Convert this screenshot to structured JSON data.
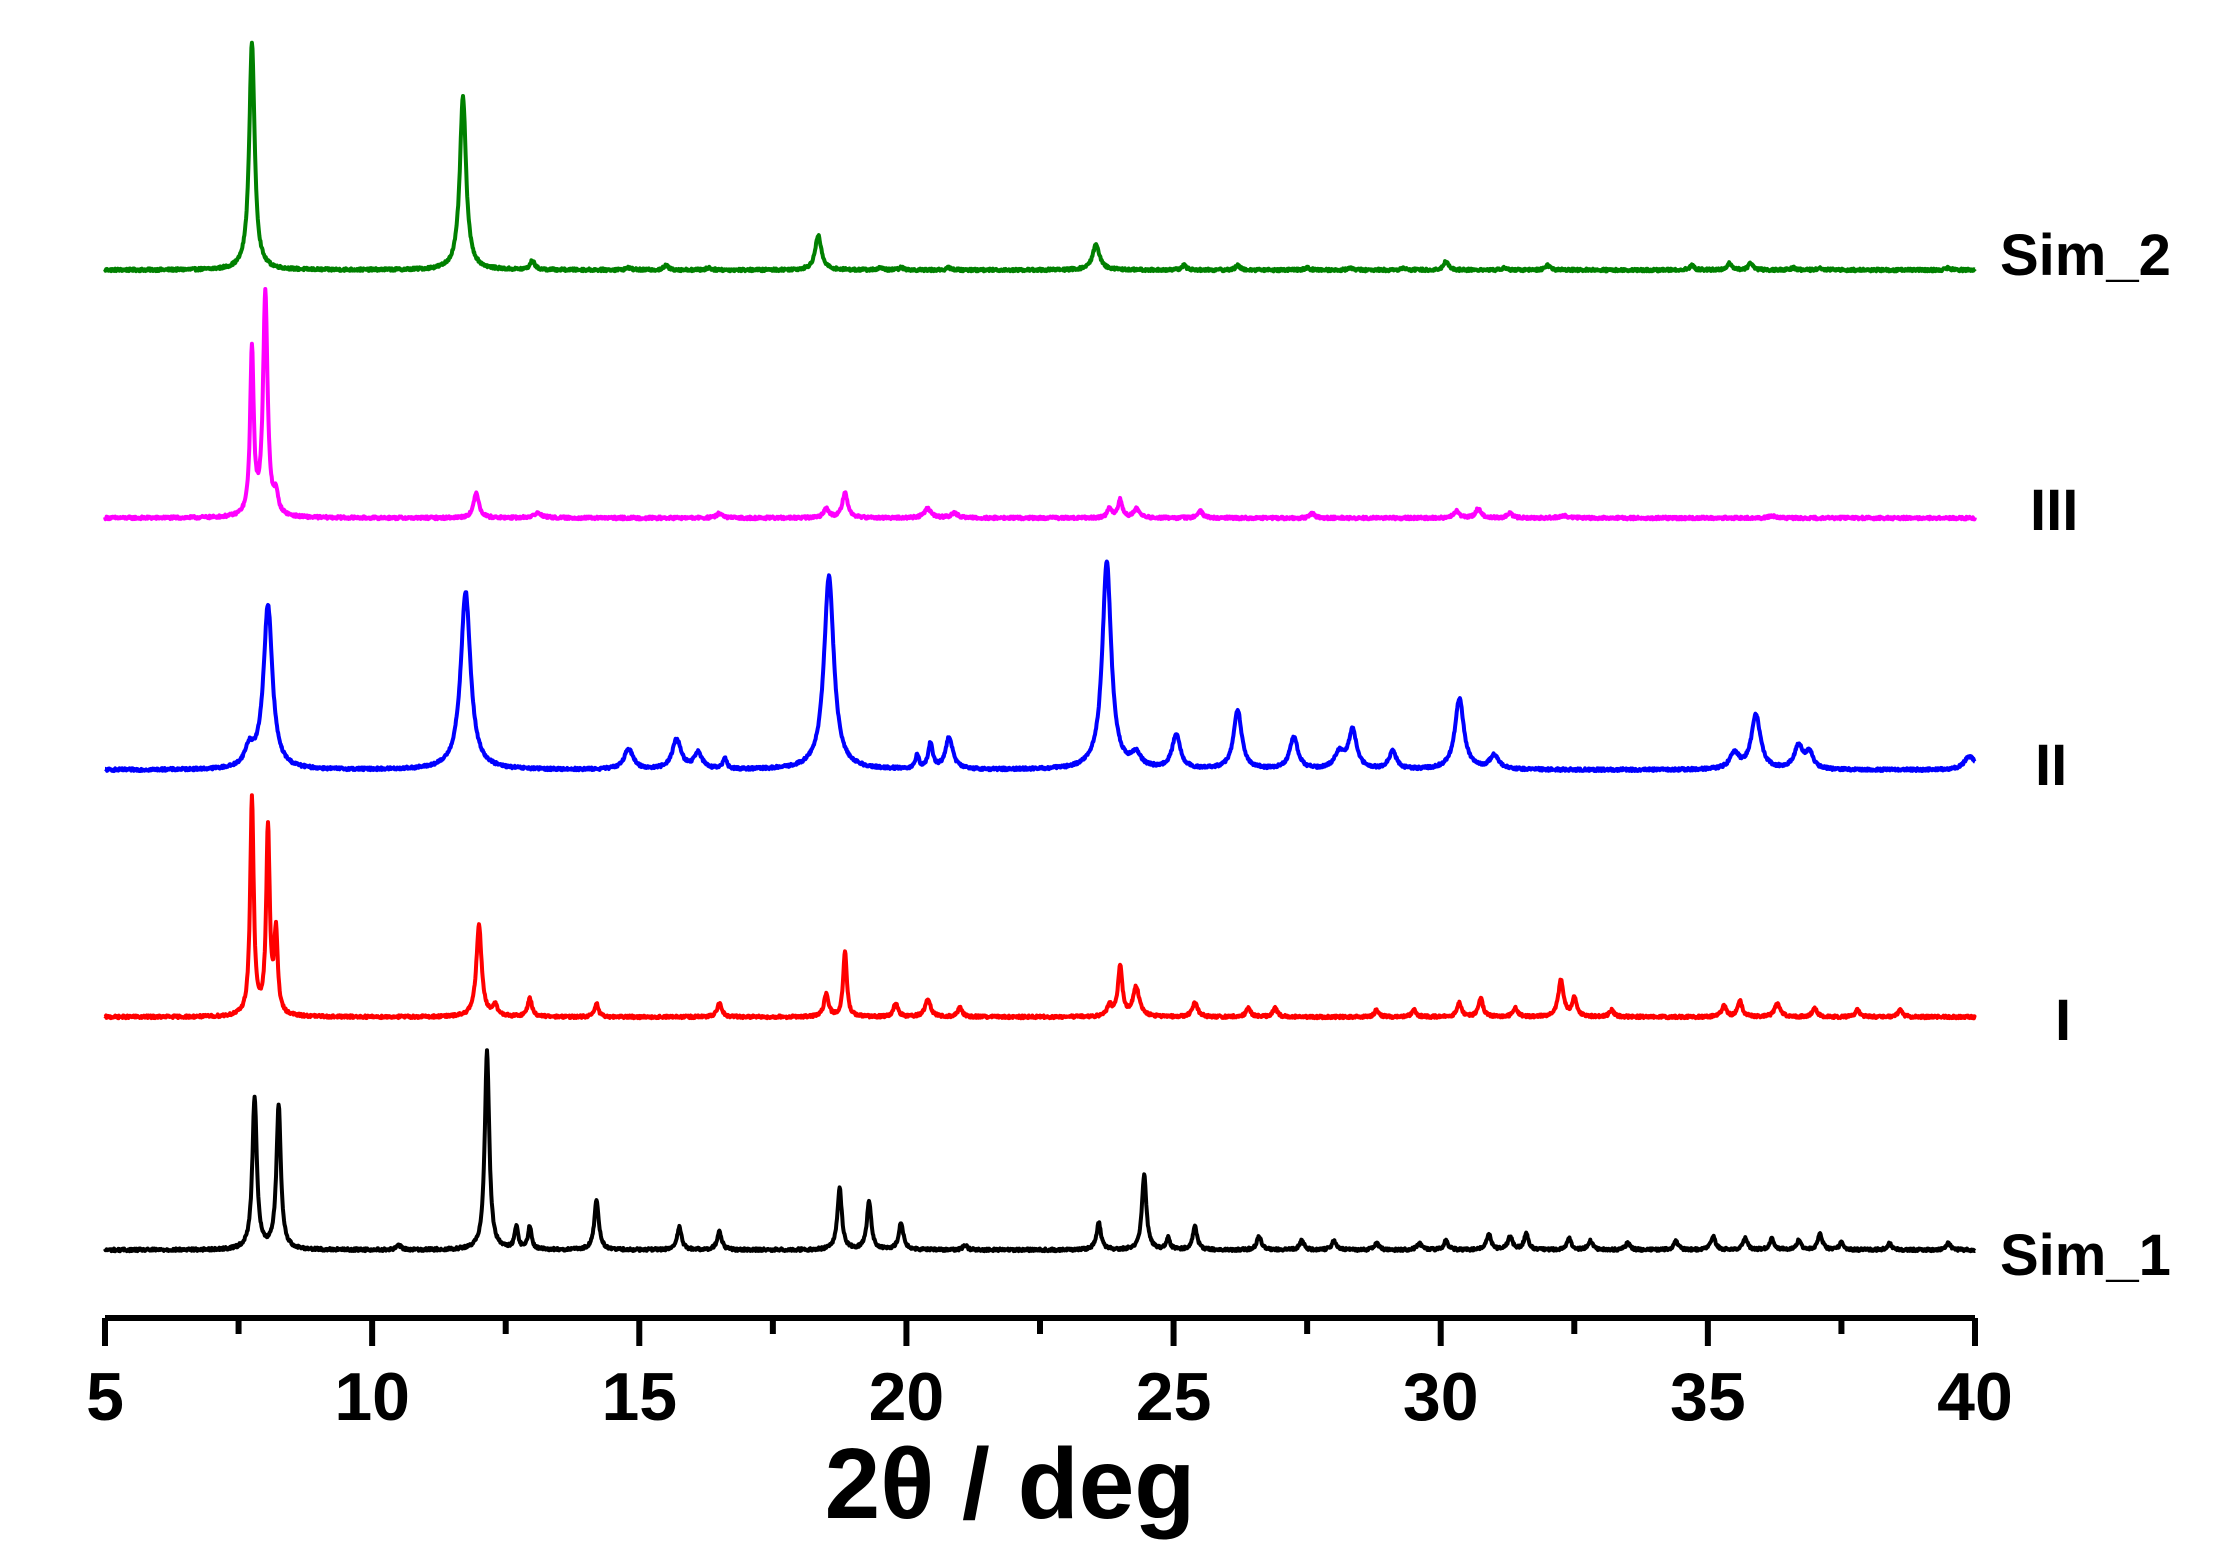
{
  "chart_data": {
    "type": "line",
    "xlabel": "2θ / deg",
    "ylabel": "",
    "xlim": [
      5,
      40
    ],
    "x_ticks": [
      5,
      10,
      15,
      20,
      25,
      30,
      35,
      40
    ],
    "x_tick_labels": [
      "5",
      "10",
      "15",
      "20",
      "25",
      "30",
      "35",
      "40"
    ],
    "grid": false,
    "legend": "labels at right end of each trace",
    "stacked_offset": true,
    "series": [
      {
        "name": "Sim_2",
        "color": "#008000",
        "peaks": [
          {
            "x": 7.75,
            "h": 1.0,
            "w": 0.06
          },
          {
            "x": 11.7,
            "h": 0.76,
            "w": 0.07
          },
          {
            "x": 13.0,
            "h": 0.04,
            "w": 0.05
          },
          {
            "x": 14.8,
            "h": 0.01,
            "w": 0.05
          },
          {
            "x": 15.5,
            "h": 0.02,
            "w": 0.05
          },
          {
            "x": 16.3,
            "h": 0.01,
            "w": 0.05
          },
          {
            "x": 18.35,
            "h": 0.15,
            "w": 0.07
          },
          {
            "x": 19.5,
            "h": 0.01,
            "w": 0.05
          },
          {
            "x": 19.9,
            "h": 0.01,
            "w": 0.05
          },
          {
            "x": 20.8,
            "h": 0.01,
            "w": 0.05
          },
          {
            "x": 23.55,
            "h": 0.11,
            "w": 0.08
          },
          {
            "x": 25.2,
            "h": 0.02,
            "w": 0.05
          },
          {
            "x": 26.2,
            "h": 0.02,
            "w": 0.05
          },
          {
            "x": 27.5,
            "h": 0.01,
            "w": 0.05
          },
          {
            "x": 28.3,
            "h": 0.01,
            "w": 0.05
          },
          {
            "x": 29.3,
            "h": 0.01,
            "w": 0.05
          },
          {
            "x": 30.1,
            "h": 0.04,
            "w": 0.05
          },
          {
            "x": 31.2,
            "h": 0.01,
            "w": 0.05
          },
          {
            "x": 32.0,
            "h": 0.02,
            "w": 0.05
          },
          {
            "x": 34.7,
            "h": 0.02,
            "w": 0.05
          },
          {
            "x": 35.4,
            "h": 0.03,
            "w": 0.05
          },
          {
            "x": 35.8,
            "h": 0.03,
            "w": 0.05
          },
          {
            "x": 36.6,
            "h": 0.01,
            "w": 0.05
          },
          {
            "x": 37.1,
            "h": 0.01,
            "w": 0.05
          },
          {
            "x": 39.5,
            "h": 0.01,
            "w": 0.05
          }
        ]
      },
      {
        "name": "III",
        "color": "#ff00ff",
        "peaks": [
          {
            "x": 7.75,
            "h": 0.73,
            "w": 0.04
          },
          {
            "x": 8.0,
            "h": 0.98,
            "w": 0.05
          },
          {
            "x": 8.2,
            "h": 0.08,
            "w": 0.05
          },
          {
            "x": 11.95,
            "h": 0.11,
            "w": 0.06
          },
          {
            "x": 13.1,
            "h": 0.02,
            "w": 0.1
          },
          {
            "x": 16.5,
            "h": 0.02,
            "w": 0.06
          },
          {
            "x": 18.5,
            "h": 0.04,
            "w": 0.06
          },
          {
            "x": 18.85,
            "h": 0.11,
            "w": 0.06
          },
          {
            "x": 20.4,
            "h": 0.04,
            "w": 0.08
          },
          {
            "x": 20.9,
            "h": 0.02,
            "w": 0.08
          },
          {
            "x": 23.8,
            "h": 0.04,
            "w": 0.05
          },
          {
            "x": 24.0,
            "h": 0.08,
            "w": 0.05
          },
          {
            "x": 24.3,
            "h": 0.04,
            "w": 0.06
          },
          {
            "x": 25.5,
            "h": 0.03,
            "w": 0.06
          },
          {
            "x": 27.6,
            "h": 0.02,
            "w": 0.05
          },
          {
            "x": 30.3,
            "h": 0.03,
            "w": 0.06
          },
          {
            "x": 30.7,
            "h": 0.04,
            "w": 0.06
          },
          {
            "x": 31.3,
            "h": 0.02,
            "w": 0.06
          },
          {
            "x": 32.3,
            "h": 0.01,
            "w": 0.1
          },
          {
            "x": 36.2,
            "h": 0.01,
            "w": 0.06
          }
        ]
      },
      {
        "name": "II",
        "color": "#0000ff",
        "peaks": [
          {
            "x": 7.7,
            "h": 0.08,
            "w": 0.1
          },
          {
            "x": 8.05,
            "h": 0.72,
            "w": 0.1
          },
          {
            "x": 11.75,
            "h": 0.78,
            "w": 0.11
          },
          {
            "x": 14.8,
            "h": 0.09,
            "w": 0.1
          },
          {
            "x": 15.7,
            "h": 0.13,
            "w": 0.1
          },
          {
            "x": 16.1,
            "h": 0.07,
            "w": 0.09
          },
          {
            "x": 16.6,
            "h": 0.05,
            "w": 0.04
          },
          {
            "x": 18.55,
            "h": 0.85,
            "w": 0.11
          },
          {
            "x": 20.2,
            "h": 0.06,
            "w": 0.04
          },
          {
            "x": 20.45,
            "h": 0.11,
            "w": 0.05
          },
          {
            "x": 20.8,
            "h": 0.14,
            "w": 0.08
          },
          {
            "x": 23.75,
            "h": 0.91,
            "w": 0.1
          },
          {
            "x": 24.3,
            "h": 0.06,
            "w": 0.1
          },
          {
            "x": 25.05,
            "h": 0.15,
            "w": 0.09
          },
          {
            "x": 26.2,
            "h": 0.26,
            "w": 0.09
          },
          {
            "x": 27.25,
            "h": 0.14,
            "w": 0.09
          },
          {
            "x": 28.1,
            "h": 0.07,
            "w": 0.1
          },
          {
            "x": 28.35,
            "h": 0.17,
            "w": 0.09
          },
          {
            "x": 29.1,
            "h": 0.08,
            "w": 0.08
          },
          {
            "x": 30.35,
            "h": 0.31,
            "w": 0.1
          },
          {
            "x": 31.0,
            "h": 0.06,
            "w": 0.1
          },
          {
            "x": 35.5,
            "h": 0.07,
            "w": 0.1
          },
          {
            "x": 35.9,
            "h": 0.24,
            "w": 0.1
          },
          {
            "x": 36.7,
            "h": 0.1,
            "w": 0.1
          },
          {
            "x": 36.9,
            "h": 0.07,
            "w": 0.08
          },
          {
            "x": 39.9,
            "h": 0.06,
            "w": 0.12
          }
        ]
      },
      {
        "name": "I",
        "color": "#ff0000",
        "peaks": [
          {
            "x": 7.75,
            "h": 0.95,
            "w": 0.04
          },
          {
            "x": 8.05,
            "h": 0.82,
            "w": 0.04
          },
          {
            "x": 8.2,
            "h": 0.35,
            "w": 0.04
          },
          {
            "x": 12.0,
            "h": 0.4,
            "w": 0.06
          },
          {
            "x": 12.3,
            "h": 0.05,
            "w": 0.05
          },
          {
            "x": 12.95,
            "h": 0.08,
            "w": 0.05
          },
          {
            "x": 14.2,
            "h": 0.06,
            "w": 0.04
          },
          {
            "x": 16.5,
            "h": 0.06,
            "w": 0.05
          },
          {
            "x": 18.5,
            "h": 0.1,
            "w": 0.05
          },
          {
            "x": 18.85,
            "h": 0.29,
            "w": 0.04
          },
          {
            "x": 19.8,
            "h": 0.06,
            "w": 0.05
          },
          {
            "x": 20.4,
            "h": 0.08,
            "w": 0.06
          },
          {
            "x": 21.0,
            "h": 0.04,
            "w": 0.05
          },
          {
            "x": 23.8,
            "h": 0.05,
            "w": 0.05
          },
          {
            "x": 24.0,
            "h": 0.22,
            "w": 0.05
          },
          {
            "x": 24.3,
            "h": 0.13,
            "w": 0.07
          },
          {
            "x": 25.4,
            "h": 0.06,
            "w": 0.06
          },
          {
            "x": 26.4,
            "h": 0.04,
            "w": 0.05
          },
          {
            "x": 26.9,
            "h": 0.04,
            "w": 0.05
          },
          {
            "x": 28.8,
            "h": 0.03,
            "w": 0.05
          },
          {
            "x": 29.5,
            "h": 0.03,
            "w": 0.05
          },
          {
            "x": 30.35,
            "h": 0.06,
            "w": 0.05
          },
          {
            "x": 30.75,
            "h": 0.08,
            "w": 0.05
          },
          {
            "x": 31.4,
            "h": 0.04,
            "w": 0.05
          },
          {
            "x": 32.25,
            "h": 0.16,
            "w": 0.06
          },
          {
            "x": 32.5,
            "h": 0.08,
            "w": 0.05
          },
          {
            "x": 33.2,
            "h": 0.03,
            "w": 0.05
          },
          {
            "x": 35.3,
            "h": 0.05,
            "w": 0.05
          },
          {
            "x": 35.6,
            "h": 0.07,
            "w": 0.05
          },
          {
            "x": 36.3,
            "h": 0.06,
            "w": 0.06
          },
          {
            "x": 37.0,
            "h": 0.04,
            "w": 0.05
          },
          {
            "x": 37.8,
            "h": 0.03,
            "w": 0.05
          },
          {
            "x": 38.6,
            "h": 0.03,
            "w": 0.05
          }
        ]
      },
      {
        "name": "Sim_1",
        "color": "#000000",
        "peaks": [
          {
            "x": 7.8,
            "h": 0.67,
            "w": 0.05
          },
          {
            "x": 8.25,
            "h": 0.63,
            "w": 0.05
          },
          {
            "x": 10.5,
            "h": 0.02,
            "w": 0.05
          },
          {
            "x": 12.15,
            "h": 0.87,
            "w": 0.05
          },
          {
            "x": 12.7,
            "h": 0.1,
            "w": 0.04
          },
          {
            "x": 12.95,
            "h": 0.1,
            "w": 0.04
          },
          {
            "x": 14.2,
            "h": 0.22,
            "w": 0.05
          },
          {
            "x": 15.75,
            "h": 0.1,
            "w": 0.05
          },
          {
            "x": 16.5,
            "h": 0.08,
            "w": 0.05
          },
          {
            "x": 18.75,
            "h": 0.27,
            "w": 0.05
          },
          {
            "x": 19.3,
            "h": 0.21,
            "w": 0.05
          },
          {
            "x": 19.9,
            "h": 0.12,
            "w": 0.05
          },
          {
            "x": 21.1,
            "h": 0.02,
            "w": 0.05
          },
          {
            "x": 23.6,
            "h": 0.12,
            "w": 0.05
          },
          {
            "x": 24.45,
            "h": 0.33,
            "w": 0.05
          },
          {
            "x": 24.9,
            "h": 0.05,
            "w": 0.04
          },
          {
            "x": 25.4,
            "h": 0.1,
            "w": 0.05
          },
          {
            "x": 26.6,
            "h": 0.06,
            "w": 0.05
          },
          {
            "x": 27.4,
            "h": 0.04,
            "w": 0.05
          },
          {
            "x": 28.0,
            "h": 0.04,
            "w": 0.05
          },
          {
            "x": 28.8,
            "h": 0.03,
            "w": 0.05
          },
          {
            "x": 29.6,
            "h": 0.03,
            "w": 0.05
          },
          {
            "x": 30.1,
            "h": 0.04,
            "w": 0.05
          },
          {
            "x": 30.9,
            "h": 0.07,
            "w": 0.05
          },
          {
            "x": 31.3,
            "h": 0.06,
            "w": 0.05
          },
          {
            "x": 31.6,
            "h": 0.07,
            "w": 0.05
          },
          {
            "x": 32.4,
            "h": 0.05,
            "w": 0.05
          },
          {
            "x": 32.8,
            "h": 0.04,
            "w": 0.05
          },
          {
            "x": 33.5,
            "h": 0.03,
            "w": 0.05
          },
          {
            "x": 34.4,
            "h": 0.04,
            "w": 0.05
          },
          {
            "x": 35.1,
            "h": 0.06,
            "w": 0.05
          },
          {
            "x": 35.7,
            "h": 0.05,
            "w": 0.05
          },
          {
            "x": 36.2,
            "h": 0.05,
            "w": 0.05
          },
          {
            "x": 36.7,
            "h": 0.04,
            "w": 0.05
          },
          {
            "x": 37.1,
            "h": 0.07,
            "w": 0.05
          },
          {
            "x": 37.5,
            "h": 0.03,
            "w": 0.05
          },
          {
            "x": 38.4,
            "h": 0.03,
            "w": 0.05
          },
          {
            "x": 39.5,
            "h": 0.03,
            "w": 0.05
          }
        ]
      }
    ]
  }
}
